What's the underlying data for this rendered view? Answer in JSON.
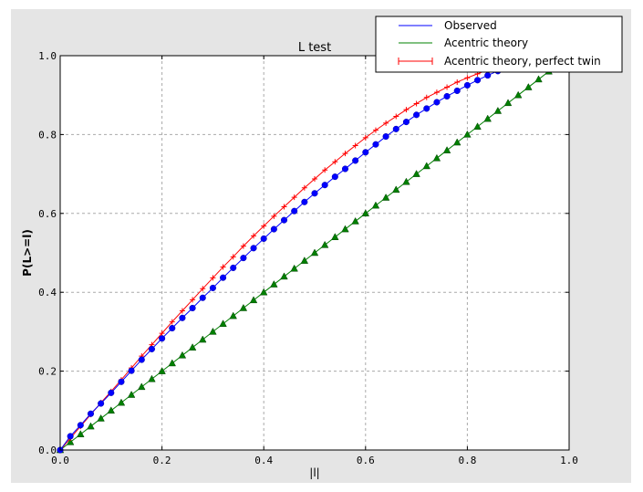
{
  "chart_data": {
    "type": "line",
    "title": "L test",
    "xlabel": "|l|",
    "ylabel": "P(L>=l)",
    "xlim": [
      0,
      1
    ],
    "ylim": [
      0,
      1
    ],
    "grid": true,
    "legend": "top-right",
    "xticks": [
      "0.0",
      "0.2",
      "0.4",
      "0.6",
      "0.8",
      "1.0"
    ],
    "yticks": [
      "0.0",
      "0.2",
      "0.4",
      "0.6",
      "0.8",
      "1.0"
    ],
    "x": [
      0,
      0.02,
      0.04,
      0.06,
      0.08,
      0.1,
      0.12,
      0.14,
      0.16,
      0.18,
      0.2,
      0.22,
      0.24,
      0.26,
      0.28,
      0.3,
      0.32,
      0.34,
      0.36,
      0.38,
      0.4,
      0.42,
      0.44,
      0.46,
      0.48,
      0.5,
      0.52,
      0.54,
      0.56,
      0.58,
      0.6,
      0.62,
      0.64,
      0.66,
      0.68,
      0.7,
      0.72,
      0.74,
      0.76,
      0.78,
      0.8,
      0.82,
      0.84,
      0.86,
      0.88,
      0.9,
      0.92,
      0.94,
      0.96,
      0.98,
      1.0
    ],
    "series": [
      {
        "name": "Observed",
        "color": "#0000ff",
        "marker": "circle",
        "values": [
          0,
          0.035,
          0.063,
          0.092,
          0.118,
          0.145,
          0.173,
          0.201,
          0.229,
          0.256,
          0.283,
          0.309,
          0.335,
          0.36,
          0.386,
          0.411,
          0.437,
          0.462,
          0.487,
          0.512,
          0.536,
          0.56,
          0.583,
          0.606,
          0.629,
          0.651,
          0.672,
          0.693,
          0.713,
          0.734,
          0.755,
          0.775,
          0.795,
          0.814,
          0.832,
          0.85,
          0.866,
          0.882,
          0.897,
          0.911,
          0.925,
          0.938,
          0.95,
          0.961,
          0.971,
          0.98,
          0.987,
          0.993,
          0.997,
          0.999,
          1.0
        ]
      },
      {
        "name": "Acentric theory",
        "color": "#008000",
        "marker": "triangle",
        "values": [
          0,
          0.02,
          0.04,
          0.06,
          0.08,
          0.1,
          0.12,
          0.14,
          0.16,
          0.18,
          0.2,
          0.22,
          0.24,
          0.26,
          0.28,
          0.3,
          0.32,
          0.34,
          0.36,
          0.38,
          0.4,
          0.42,
          0.44,
          0.46,
          0.48,
          0.5,
          0.52,
          0.54,
          0.56,
          0.58,
          0.6,
          0.62,
          0.64,
          0.66,
          0.68,
          0.7,
          0.72,
          0.74,
          0.76,
          0.78,
          0.8,
          0.82,
          0.84,
          0.86,
          0.88,
          0.9,
          0.92,
          0.94,
          0.96,
          0.98,
          1.0
        ]
      },
      {
        "name": "Acentric theory, perfect twin",
        "color": "#ff0000",
        "marker": "plus",
        "values": [
          0,
          0.03,
          0.06,
          0.09,
          0.12,
          0.1485,
          0.178,
          0.208,
          0.238,
          0.267,
          0.296,
          0.325,
          0.353,
          0.381,
          0.409,
          0.4365,
          0.464,
          0.49,
          0.517,
          0.543,
          0.568,
          0.593,
          0.617,
          0.641,
          0.665,
          0.6875,
          0.71,
          0.731,
          0.752,
          0.772,
          0.792,
          0.811,
          0.829,
          0.846,
          0.863,
          0.8785,
          0.894,
          0.907,
          0.92,
          0.933,
          0.944,
          0.954,
          0.964,
          0.973,
          0.98,
          0.986,
          0.991,
          0.995,
          0.998,
          0.9996,
          1.0
        ]
      }
    ]
  }
}
